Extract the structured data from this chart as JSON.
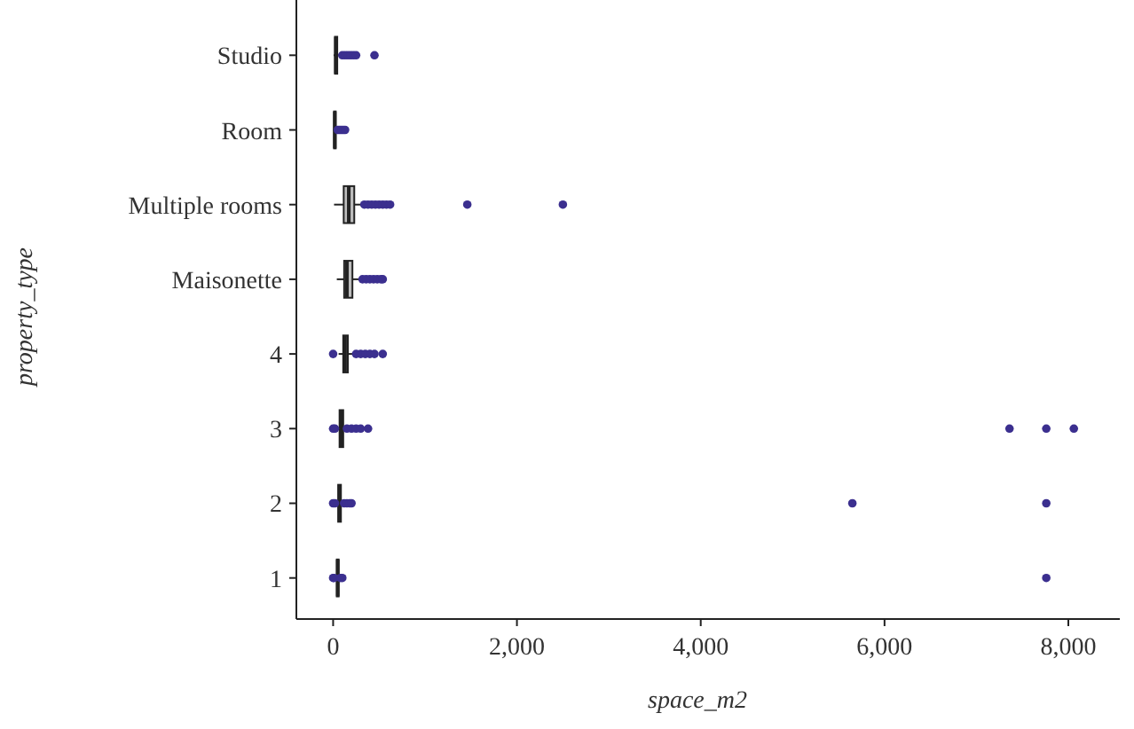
{
  "chart_data": {
    "type": "box",
    "orientation": "horizontal",
    "xlabel": "space_m2",
    "ylabel": "property_type",
    "categories": [
      "Studio",
      "Room",
      "Multiple rooms",
      "Maisonette",
      "4",
      "3",
      "2",
      "1"
    ],
    "color": "#bdbdbd",
    "xlim": [
      -400,
      8560
    ],
    "xticks": [
      0,
      {
        "value": 2000,
        "label": "2,000"
      },
      {
        "value": 4000,
        "label": "4,000"
      },
      {
        "value": 6000,
        "label": "6,000"
      },
      {
        "value": 8000,
        "label": "8,000"
      }
    ],
    "grid": false,
    "boxes": [
      {
        "low": 5,
        "q1": 20,
        "median": 30,
        "q3": 45,
        "high": 80,
        "outliers": [
          100,
          130,
          160,
          190,
          220,
          250,
          450
        ]
      },
      {
        "low": 2,
        "q1": 10,
        "median": 18,
        "q3": 28,
        "high": 40,
        "outliers": [
          50,
          70,
          90,
          110,
          130
        ]
      },
      {
        "low": 10,
        "q1": 115,
        "median": 170,
        "q3": 230,
        "high": 320,
        "outliers": [
          340,
          380,
          420,
          460,
          500,
          540,
          580,
          620,
          1460,
          2500
        ]
      },
      {
        "low": 40,
        "q1": 120,
        "median": 150,
        "q3": 210,
        "high": 300,
        "outliers": [
          320,
          360,
          400,
          440,
          480,
          520,
          540
        ]
      },
      {
        "low": 60,
        "q1": 110,
        "median": 130,
        "q3": 160,
        "high": 220,
        "outliers": [
          0,
          250,
          300,
          350,
          400,
          450,
          540
        ]
      },
      {
        "low": 40,
        "q1": 70,
        "median": 90,
        "q3": 110,
        "high": 130,
        "outliers": [
          0,
          20,
          150,
          200,
          250,
          300,
          380,
          7360,
          7760,
          8060
        ]
      },
      {
        "low": 35,
        "q1": 55,
        "median": 70,
        "q3": 85,
        "high": 100,
        "outliers": [
          0,
          20,
          120,
          150,
          180,
          200,
          5650,
          7760
        ]
      },
      {
        "low": 20,
        "q1": 40,
        "median": 50,
        "q3": 60,
        "high": 70,
        "outliers": [
          0,
          10,
          80,
          100,
          7760
        ]
      }
    ]
  }
}
